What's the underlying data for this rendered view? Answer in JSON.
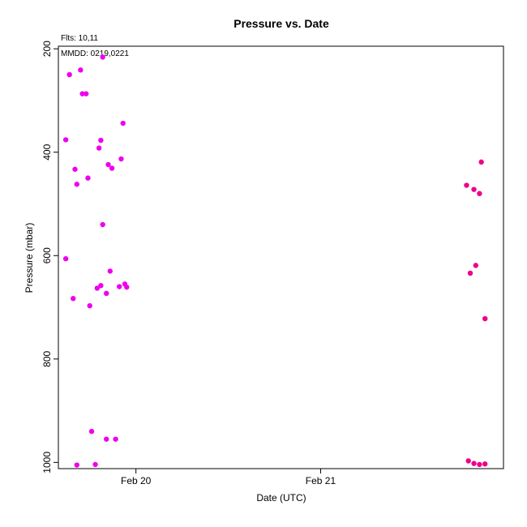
{
  "chart_data": {
    "type": "scatter",
    "title": "Pressure  vs. Date",
    "xlabel": "Date (UTC)",
    "ylabel": "Pressure (mbar)",
    "x_unit": "days",
    "x_ticks": [
      {
        "value": 20,
        "label": "Feb 20"
      },
      {
        "value": 21,
        "label": "Feb 21"
      }
    ],
    "y_ticks": [
      200,
      400,
      600,
      800,
      1000
    ],
    "xlim": [
      19.58,
      21.99
    ],
    "ylim": [
      1012,
      195
    ],
    "y_inverted": true,
    "grid": false,
    "annotations": {
      "flts": "Flts: 10,11",
      "mmdd": "MMDD: 0219,0221"
    },
    "series": [
      {
        "color": "#ee00ee",
        "points": [
          [
            19.82,
            216
          ],
          [
            19.64,
            250
          ],
          [
            19.7,
            241
          ],
          [
            19.71,
            287
          ],
          [
            19.73,
            287
          ],
          [
            19.93,
            344
          ],
          [
            19.62,
            376
          ],
          [
            19.81,
            377
          ],
          [
            19.8,
            392
          ],
          [
            19.67,
            433
          ],
          [
            19.85,
            424
          ],
          [
            19.87,
            431
          ],
          [
            19.92,
            413
          ],
          [
            19.74,
            450
          ],
          [
            19.68,
            462
          ],
          [
            19.82,
            540
          ],
          [
            19.62,
            606
          ],
          [
            19.86,
            630
          ],
          [
            19.79,
            663
          ],
          [
            19.81,
            658
          ],
          [
            19.84,
            673
          ],
          [
            19.91,
            660
          ],
          [
            19.94,
            655
          ],
          [
            19.95,
            661
          ],
          [
            19.66,
            683
          ],
          [
            19.75,
            697
          ],
          [
            19.76,
            940
          ],
          [
            19.84,
            955
          ],
          [
            19.89,
            955
          ],
          [
            19.68,
            1005
          ],
          [
            19.78,
            1004
          ]
        ]
      },
      {
        "color": "#ee0088",
        "points": [
          [
            21.87,
            419
          ],
          [
            21.79,
            464
          ],
          [
            21.83,
            472
          ],
          [
            21.86,
            480
          ],
          [
            21.81,
            634
          ],
          [
            21.84,
            619
          ],
          [
            21.89,
            722
          ],
          [
            21.8,
            997
          ],
          [
            21.83,
            1002
          ],
          [
            21.86,
            1004
          ],
          [
            21.89,
            1003
          ]
        ]
      }
    ]
  }
}
